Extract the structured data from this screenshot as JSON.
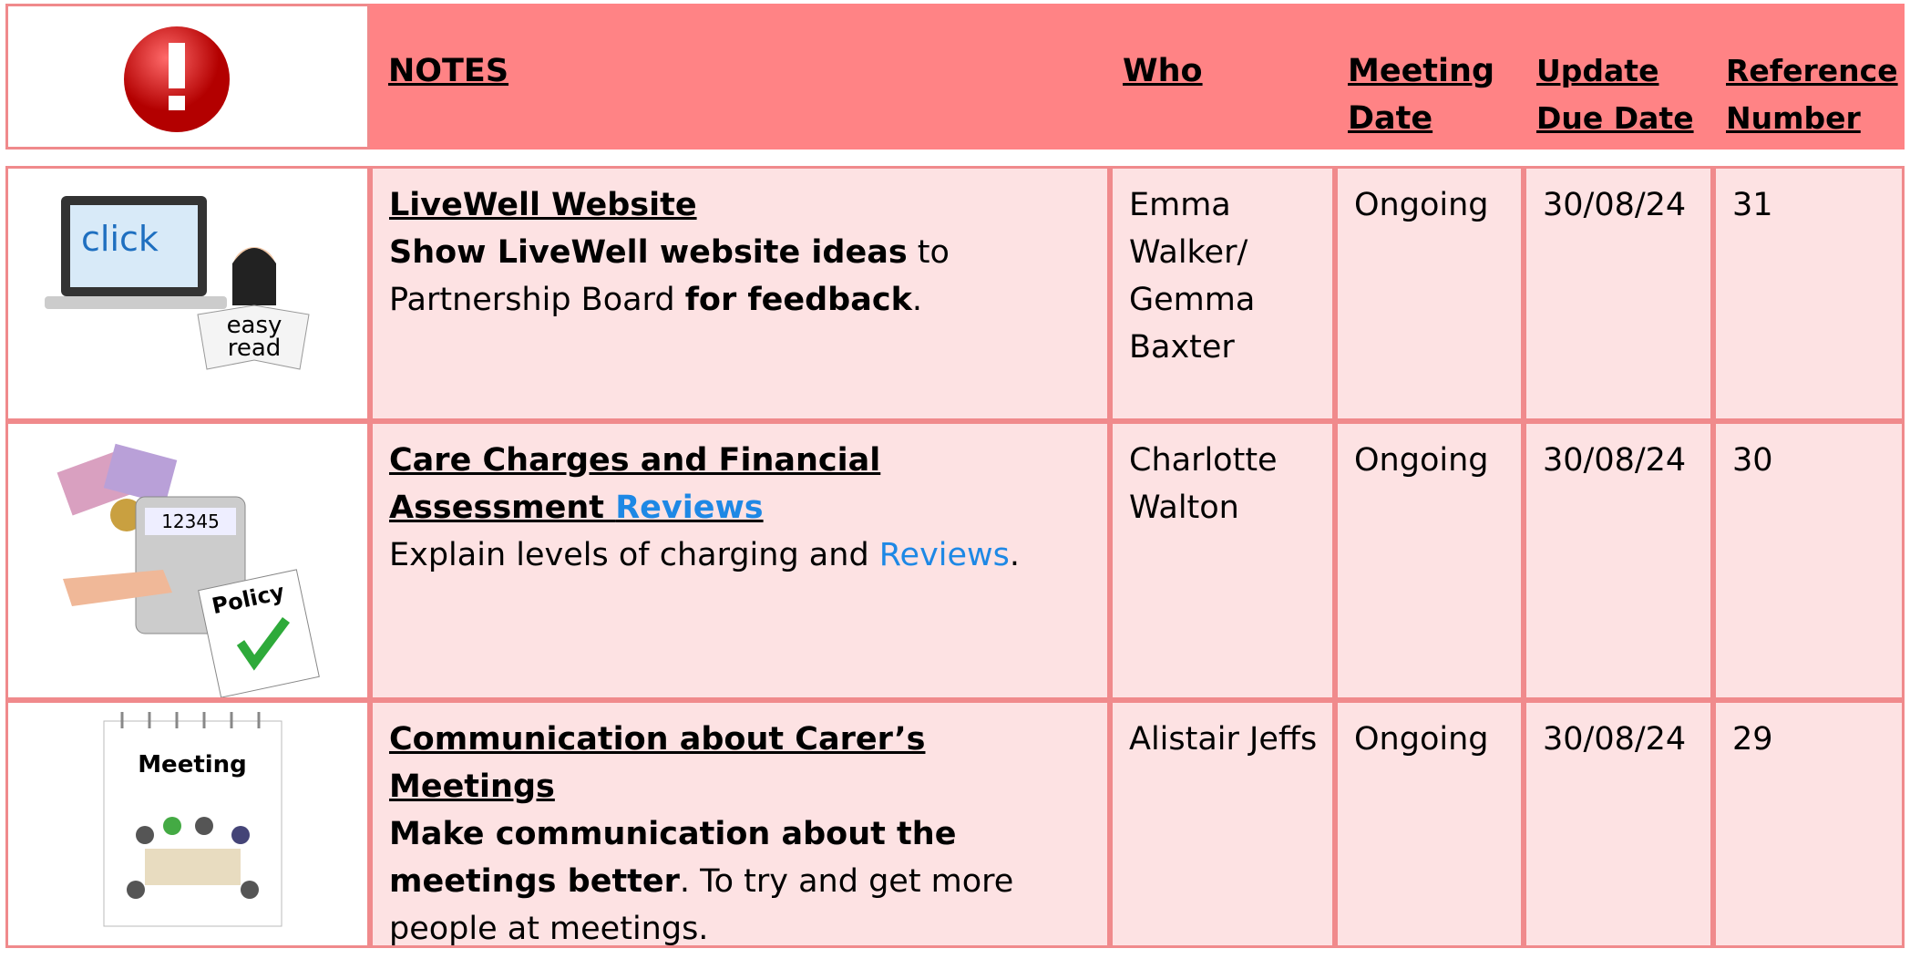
{
  "header": {
    "notes": "NOTES",
    "who": "Who",
    "meeting_date": "Meeting Date",
    "update_due_date": "Update Due Date",
    "reference_number": "Reference Number"
  },
  "rows": [
    {
      "title": [
        "LiveWell Website"
      ],
      "description": [
        "Show LiveWell website ideas",
        " to Partnership Board ",
        "for feedback",
        "."
      ],
      "image_text": [
        "click",
        "easy",
        "read"
      ],
      "who": "Emma Walker/ Gemma Baxter",
      "meeting_date": "Ongoing",
      "update_due_date": "30/08/24",
      "reference_number": 31
    },
    {
      "title": [
        "Care Charges and Financial Assessment ",
        "Reviews"
      ],
      "description": [
        "Explain levels of charging and ",
        "Reviews",
        "."
      ],
      "image_text": [
        "12345",
        "Policy"
      ],
      "who": "Charlotte Walton",
      "meeting_date": "Ongoing",
      "update_due_date": "30/08/24",
      "reference_number": 30
    },
    {
      "title": [
        "Communication about Carer’s Meetings"
      ],
      "description": [
        "Make communication about the meetings better",
        ". To try and get more people at meetings."
      ],
      "image_text": [
        "Meeting"
      ],
      "who": "Alistair Jeffs",
      "meeting_date": "Ongoing",
      "update_due_date": "30/08/24",
      "reference_number": 29
    }
  ]
}
